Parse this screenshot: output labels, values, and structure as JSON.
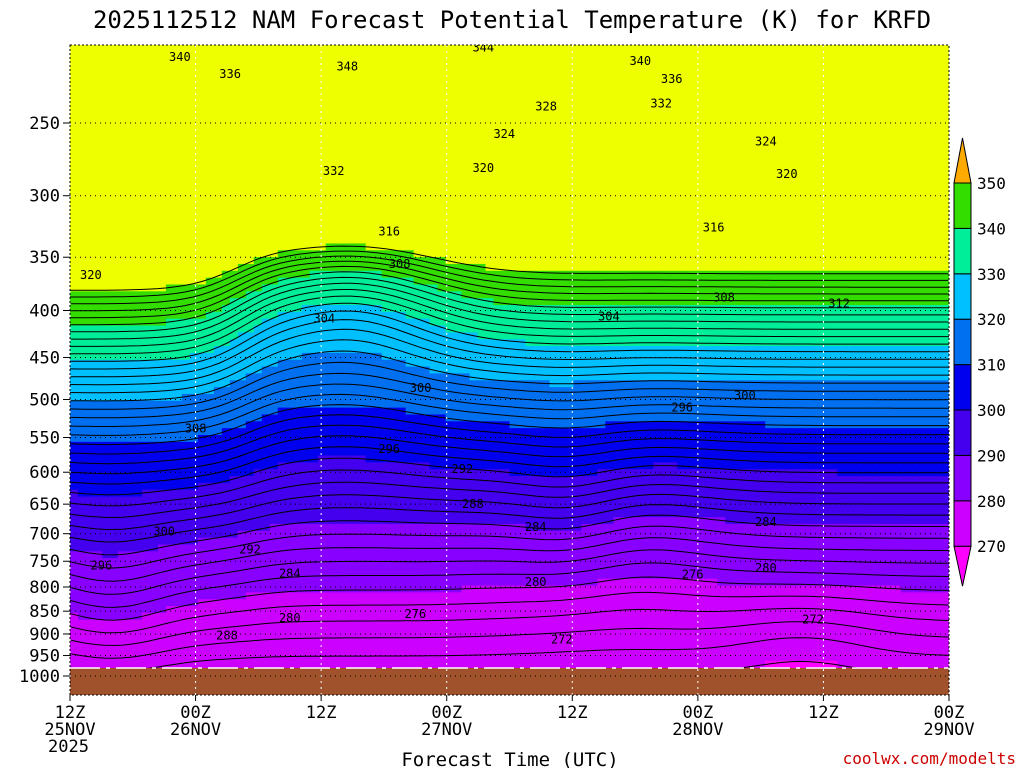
{
  "chart_data": {
    "type": "heatmap",
    "title": "2025112512 NAM Forecast Potential Temperature (K) for KRFD",
    "xlabel": "Forecast Time (UTC)",
    "ylabel": "",
    "credit": "coolwx.com/modelts",
    "x_ticks": [
      {
        "hours": 0,
        "line1": "12Z",
        "line2": "25NOV",
        "line3": "2025"
      },
      {
        "hours": 12,
        "line1": "00Z",
        "line2": "26NOV",
        "line3": ""
      },
      {
        "hours": 24,
        "line1": "12Z",
        "line2": "",
        "line3": ""
      },
      {
        "hours": 36,
        "line1": "00Z",
        "line2": "27NOV",
        "line3": ""
      },
      {
        "hours": 48,
        "line1": "12Z",
        "line2": "",
        "line3": ""
      },
      {
        "hours": 60,
        "line1": "00Z",
        "line2": "28NOV",
        "line3": ""
      },
      {
        "hours": 72,
        "line1": "12Z",
        "line2": "",
        "line3": ""
      },
      {
        "hours": 84,
        "line1": "00Z",
        "line2": "29NOV",
        "line3": ""
      }
    ],
    "xlim_hours": [
      0,
      84
    ],
    "y_ticks": [
      250,
      300,
      350,
      400,
      450,
      500,
      550,
      600,
      650,
      700,
      750,
      800,
      850,
      900,
      950,
      1000
    ],
    "y_ticks_labels": [
      "250",
      "300",
      "350",
      "400",
      "450",
      "500",
      "550",
      "600",
      "650",
      "700",
      "750",
      "800",
      "850",
      "900",
      "950",
      "1000"
    ],
    "ylim_hpa": [
      200,
      1050
    ],
    "y_scale": "log-pressure",
    "grid": true,
    "colorbar": {
      "levels": [
        270,
        280,
        290,
        300,
        310,
        320,
        330,
        340,
        350
      ],
      "labels": [
        "270",
        "280",
        "290",
        "300",
        "310",
        "320",
        "330",
        "340",
        "350"
      ],
      "colors": [
        "#ff00ff",
        "#cc00ff",
        "#8800ff",
        "#4400ee",
        "#0000ee",
        "#0070f0",
        "#00c0ff",
        "#00ee99",
        "#33dd00",
        "#eeff00",
        "#ffaa00"
      ],
      "extend": "both",
      "placement": "right"
    },
    "contour_interval_K": 2,
    "contour_labels": [
      {
        "value": "340",
        "hours": 10.5,
        "hpa": 212
      },
      {
        "value": "336",
        "hours": 15.3,
        "hpa": 221
      },
      {
        "value": "348",
        "hours": 26.5,
        "hpa": 217
      },
      {
        "value": "344",
        "hours": 39.5,
        "hpa": 207
      },
      {
        "value": "340",
        "hours": 54.5,
        "hpa": 214
      },
      {
        "value": "336",
        "hours": 57.5,
        "hpa": 224
      },
      {
        "value": "332",
        "hours": 56.5,
        "hpa": 238
      },
      {
        "value": "328",
        "hours": 45.5,
        "hpa": 240
      },
      {
        "value": "324",
        "hours": 41.5,
        "hpa": 257
      },
      {
        "value": "324",
        "hours": 66.5,
        "hpa": 262
      },
      {
        "value": "332",
        "hours": 25.2,
        "hpa": 282
      },
      {
        "value": "320",
        "hours": 39.5,
        "hpa": 280
      },
      {
        "value": "320",
        "hours": 68.5,
        "hpa": 284
      },
      {
        "value": "316",
        "hours": 30.5,
        "hpa": 328
      },
      {
        "value": "316",
        "hours": 61.5,
        "hpa": 325
      },
      {
        "value": "308",
        "hours": 31.5,
        "hpa": 356
      },
      {
        "value": "320",
        "hours": 2.0,
        "hpa": 366
      },
      {
        "value": "312",
        "hours": 73.5,
        "hpa": 393
      },
      {
        "value": "308",
        "hours": 62.5,
        "hpa": 387
      },
      {
        "value": "304",
        "hours": 24.3,
        "hpa": 408
      },
      {
        "value": "304",
        "hours": 51.5,
        "hpa": 406
      },
      {
        "value": "300",
        "hours": 33.5,
        "hpa": 486
      },
      {
        "value": "300",
        "hours": 64.5,
        "hpa": 495
      },
      {
        "value": "296",
        "hours": 58.5,
        "hpa": 510
      },
      {
        "value": "308",
        "hours": 12.0,
        "hpa": 538
      },
      {
        "value": "296",
        "hours": 30.5,
        "hpa": 566
      },
      {
        "value": "292",
        "hours": 37.5,
        "hpa": 595
      },
      {
        "value": "288",
        "hours": 38.5,
        "hpa": 650
      },
      {
        "value": "284",
        "hours": 44.5,
        "hpa": 688
      },
      {
        "value": "284",
        "hours": 66.5,
        "hpa": 680
      },
      {
        "value": "300",
        "hours": 9.0,
        "hpa": 696
      },
      {
        "value": "292",
        "hours": 17.2,
        "hpa": 728
      },
      {
        "value": "296",
        "hours": 3.0,
        "hpa": 758
      },
      {
        "value": "284",
        "hours": 21.0,
        "hpa": 773
      },
      {
        "value": "280",
        "hours": 44.5,
        "hpa": 790
      },
      {
        "value": "276",
        "hours": 59.5,
        "hpa": 775
      },
      {
        "value": "280",
        "hours": 66.5,
        "hpa": 763
      },
      {
        "value": "276",
        "hours": 33.0,
        "hpa": 856
      },
      {
        "value": "280",
        "hours": 21.0,
        "hpa": 865
      },
      {
        "value": "272",
        "hours": 71.0,
        "hpa": 868
      },
      {
        "value": "288",
        "hours": 15.0,
        "hpa": 903
      },
      {
        "value": "272",
        "hours": 47.0,
        "hpa": 912
      }
    ]
  }
}
